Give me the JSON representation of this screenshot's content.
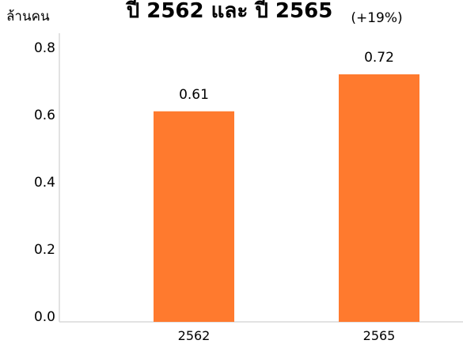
{
  "chart_data": {
    "type": "bar",
    "title": "ปี 2562 และ ปี 2565",
    "subtitle": "(+19%)",
    "ylabel": "ล้านคน",
    "xlabel": "",
    "categories": [
      "2562",
      "2565"
    ],
    "values": [
      0.61,
      0.72
    ],
    "value_labels": [
      "0.61",
      "0.72"
    ],
    "ylim": [
      0,
      0.8
    ],
    "yticks": [
      "0.0",
      "0.2",
      "0.4",
      "0.6",
      "0.8"
    ],
    "ytick_values": [
      0,
      0.2,
      0.4,
      0.6,
      0.8
    ],
    "grid": false,
    "legend": "none",
    "bar_color": "#ff7a2e"
  }
}
